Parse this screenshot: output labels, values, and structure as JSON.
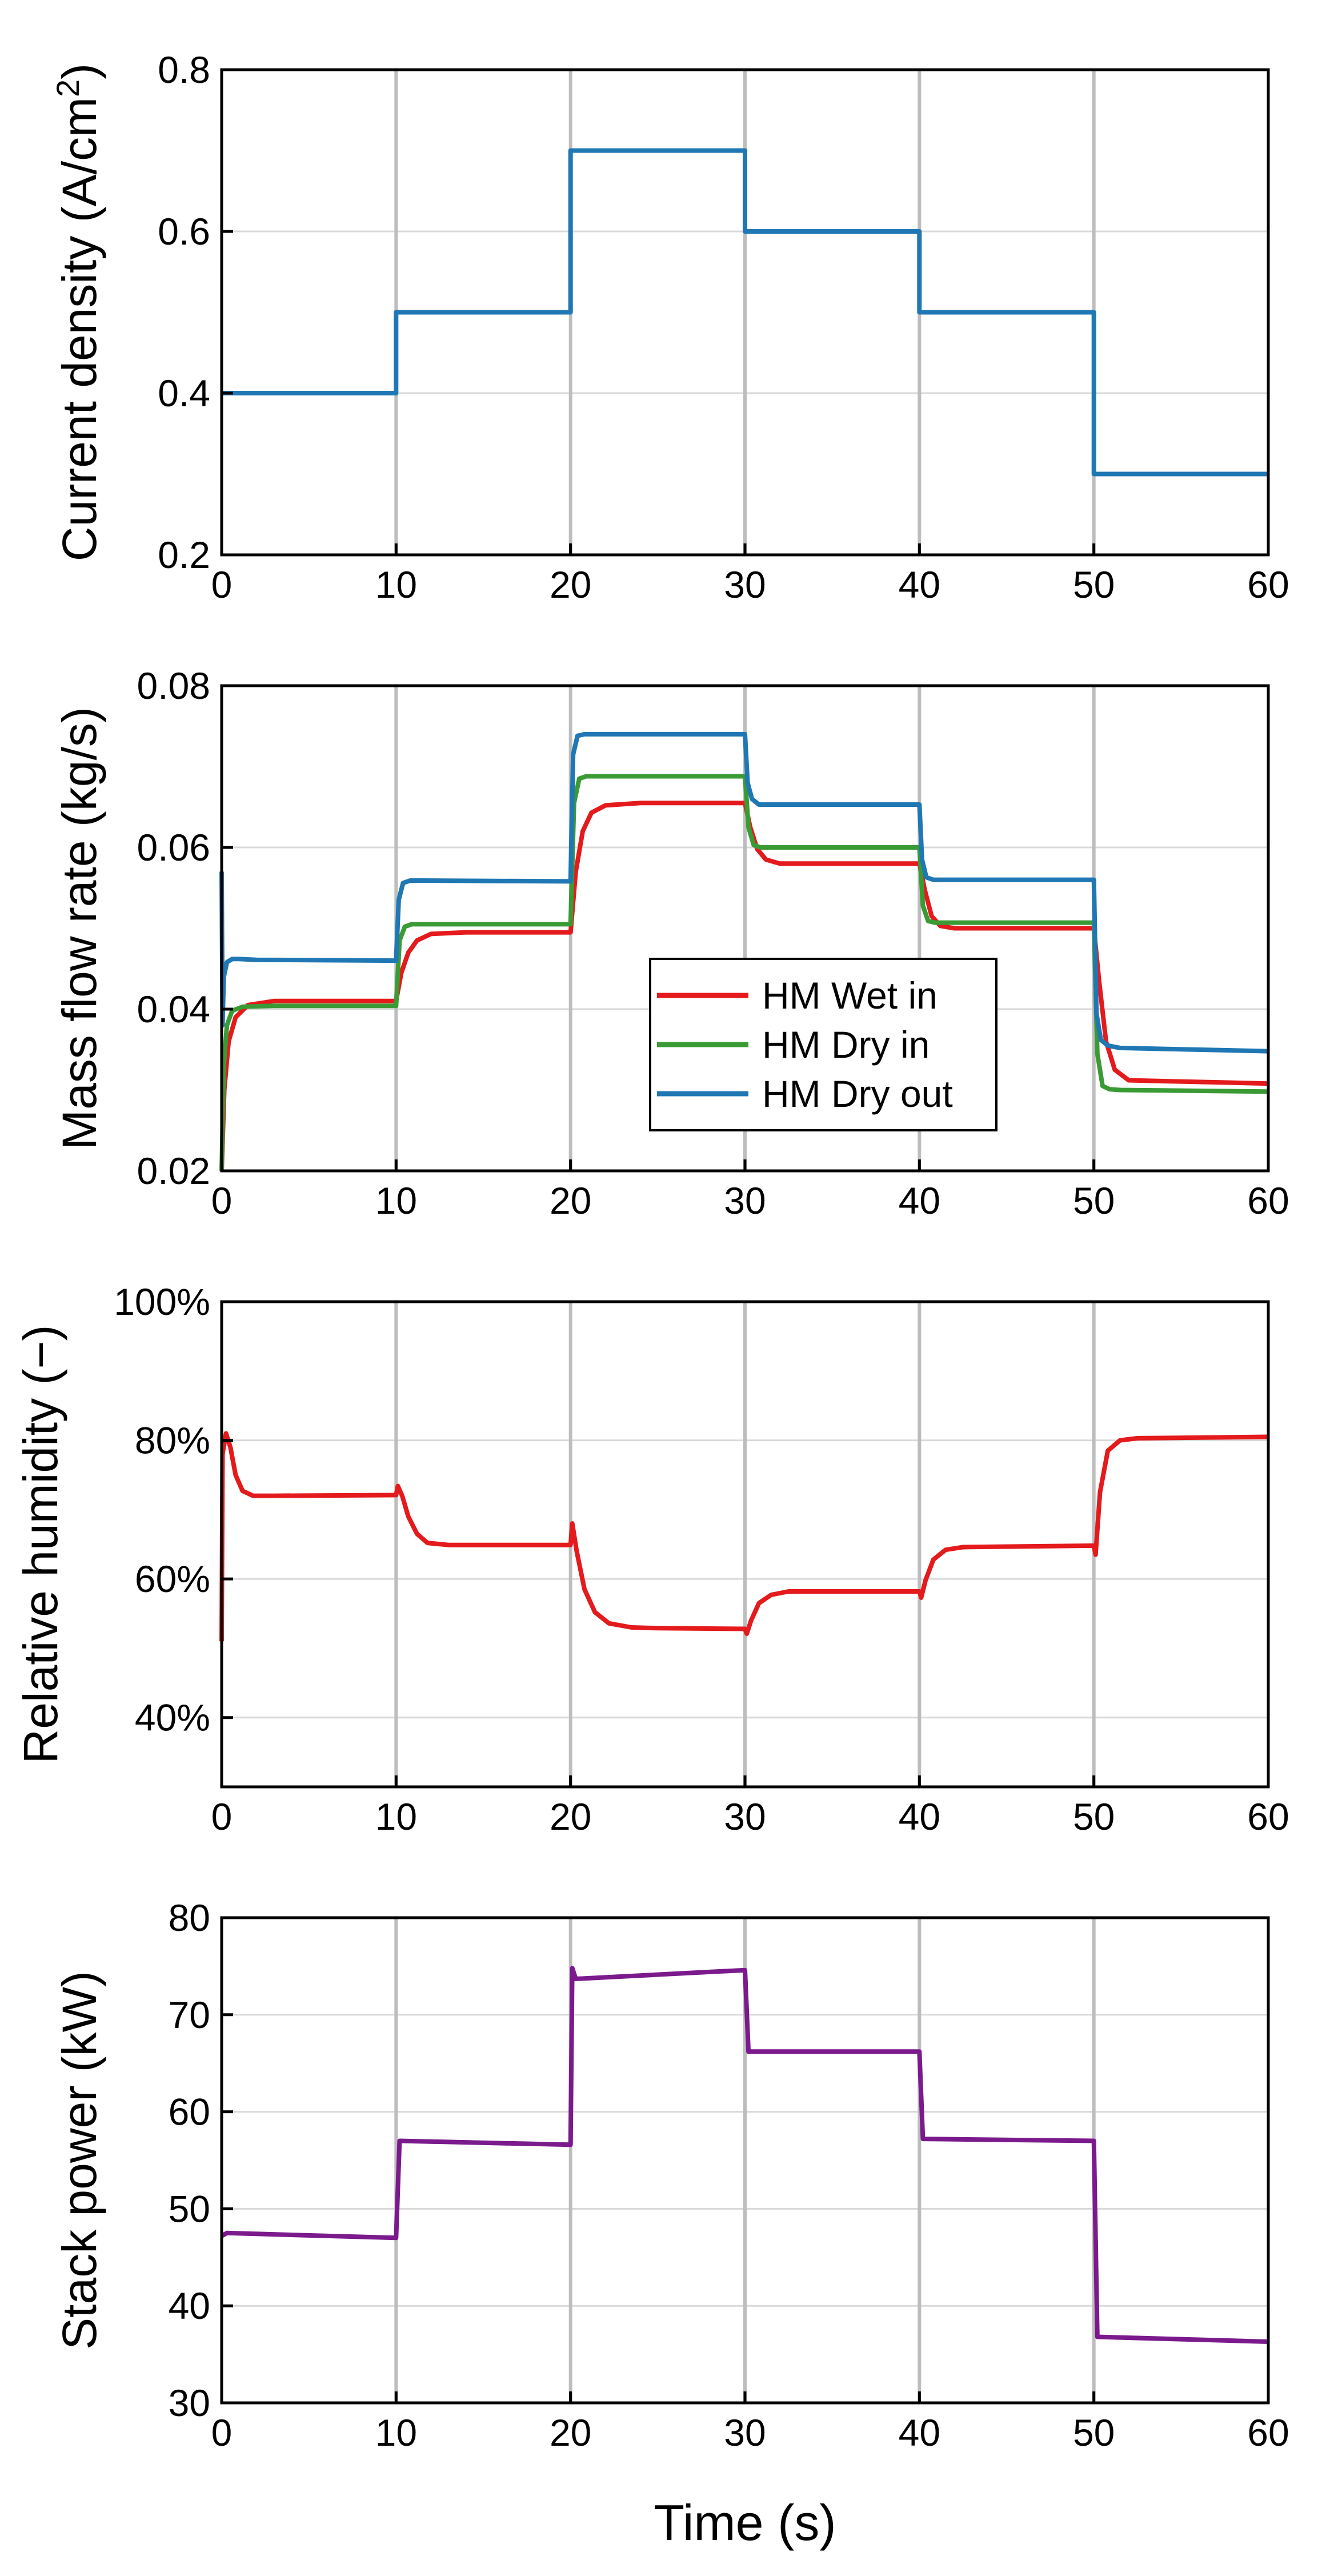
{
  "colors": {
    "wet_in": "#e41a1c",
    "dry_in": "#3a9b35",
    "dry_out": "#1f77b4",
    "current": "#1f77b4",
    "rh": "#e41a1c",
    "power": "#7b1a8c",
    "grid_vertical": "#bdbdbd",
    "grid_horizontal": "#d9d9d9"
  },
  "xlabel": "Time (s)",
  "chart_data": [
    {
      "type": "line",
      "ylabel": "Current density (A/cm²)",
      "ylabel_base": "Current density (A/cm",
      "ylabel_sup": "2",
      "ylabel_tail": ")",
      "xlim": [
        0,
        60
      ],
      "ylim": [
        0.2,
        0.8
      ],
      "xticks": [
        0,
        10,
        20,
        30,
        40,
        50,
        60
      ],
      "xtick_labels": [
        "0",
        "10",
        "20",
        "30",
        "40",
        "50",
        "60"
      ],
      "yticks": [
        0.2,
        0.4,
        0.6,
        0.8
      ],
      "ytick_labels": [
        "0.2",
        "0.4",
        "0.6",
        "0.8"
      ],
      "series": [
        {
          "name": "Current density",
          "color_key": "current",
          "x": [
            0,
            10,
            10,
            20,
            20,
            30,
            30,
            40,
            40,
            50,
            50,
            60
          ],
          "y": [
            0.4,
            0.4,
            0.5,
            0.5,
            0.7,
            0.7,
            0.6,
            0.6,
            0.5,
            0.5,
            0.3,
            0.3
          ]
        }
      ]
    },
    {
      "type": "line",
      "ylabel": "Mass flow rate (kg/s)",
      "xlim": [
        0,
        60
      ],
      "ylim": [
        0.02,
        0.08
      ],
      "xticks": [
        0,
        10,
        20,
        30,
        40,
        50,
        60
      ],
      "xtick_labels": [
        "0",
        "10",
        "20",
        "30",
        "40",
        "50",
        "60"
      ],
      "yticks": [
        0.02,
        0.04,
        0.06,
        0.08
      ],
      "ytick_labels": [
        "0.02",
        "0.04",
        "0.06",
        "0.08"
      ],
      "legend_position": "center",
      "series": [
        {
          "name": "HM Wet in",
          "color_key": "wet_in",
          "x": [
            0,
            0.15,
            0.4,
            0.8,
            1.5,
            3,
            10,
            10.3,
            10.7,
            11.2,
            12,
            14,
            20,
            20.3,
            20.7,
            21.2,
            22,
            24,
            30,
            30.3,
            30.7,
            31.2,
            32,
            40,
            40.3,
            40.7,
            41.2,
            42,
            50,
            50.3,
            50.7,
            51.2,
            52,
            60
          ],
          "y": [
            0.02,
            0.03,
            0.036,
            0.039,
            0.0405,
            0.041,
            0.041,
            0.0445,
            0.047,
            0.0485,
            0.0493,
            0.0495,
            0.0495,
            0.057,
            0.062,
            0.0643,
            0.0652,
            0.0655,
            0.0655,
            0.0625,
            0.0598,
            0.0585,
            0.058,
            0.058,
            0.0548,
            0.0515,
            0.0503,
            0.05,
            0.05,
            0.0435,
            0.036,
            0.0325,
            0.0312,
            0.0308
          ]
        },
        {
          "name": "HM Dry in",
          "color_key": "dry_in",
          "x": [
            0,
            0.12,
            0.3,
            0.6,
            1.2,
            3,
            10,
            10.2,
            10.5,
            10.9,
            11.5,
            20,
            20.2,
            20.5,
            20.9,
            21.5,
            30,
            30.2,
            30.5,
            30.9,
            31.5,
            40,
            40.2,
            40.5,
            40.9,
            41.5,
            50,
            50.2,
            50.5,
            50.9,
            51.5,
            60
          ],
          "y": [
            0.02,
            0.033,
            0.038,
            0.0398,
            0.0403,
            0.0404,
            0.0404,
            0.0485,
            0.0502,
            0.0505,
            0.0505,
            0.0505,
            0.0655,
            0.0685,
            0.0688,
            0.0688,
            0.0688,
            0.0625,
            0.0603,
            0.06,
            0.06,
            0.06,
            0.0528,
            0.0509,
            0.0507,
            0.0507,
            0.0507,
            0.0345,
            0.0305,
            0.0301,
            0.03,
            0.0298
          ]
        },
        {
          "name": "HM Dry out",
          "color_key": "dry_out",
          "x": [
            0,
            0.05,
            0.12,
            0.3,
            0.6,
            1,
            2,
            10,
            10.15,
            10.4,
            10.8,
            11.5,
            20,
            20.15,
            20.4,
            20.8,
            21.5,
            30,
            30.15,
            30.4,
            30.8,
            31.5,
            40,
            40.15,
            40.4,
            40.8,
            41.5,
            50,
            50.15,
            50.4,
            50.8,
            51.5,
            60
          ],
          "y": [
            0.057,
            0.038,
            0.044,
            0.0458,
            0.0462,
            0.0462,
            0.0461,
            0.046,
            0.0535,
            0.0556,
            0.0559,
            0.0559,
            0.0558,
            0.0715,
            0.0738,
            0.074,
            0.074,
            0.074,
            0.068,
            0.066,
            0.0653,
            0.0653,
            0.0653,
            0.0585,
            0.0563,
            0.056,
            0.056,
            0.056,
            0.0395,
            0.0362,
            0.0355,
            0.0352,
            0.0348
          ]
        }
      ]
    },
    {
      "type": "line",
      "ylabel": "Relative humidity (−)",
      "xlim": [
        0,
        60
      ],
      "ylim": [
        0.3,
        1.0
      ],
      "xticks": [
        0,
        10,
        20,
        30,
        40,
        50,
        60
      ],
      "xtick_labels": [
        "0",
        "10",
        "20",
        "30",
        "40",
        "50",
        "60"
      ],
      "yticks": [
        0.4,
        0.6,
        0.8,
        1.0
      ],
      "ytick_labels": [
        "40%",
        "60%",
        "80%",
        "100%"
      ],
      "series": [
        {
          "name": "Relative humidity",
          "color_key": "rh",
          "x": [
            0,
            0.05,
            0.25,
            0.5,
            0.8,
            1.2,
            1.8,
            3,
            10,
            10.1,
            10.35,
            10.7,
            11.2,
            11.8,
            13,
            20,
            20.1,
            20.35,
            20.8,
            21.4,
            22.2,
            23.5,
            25,
            30,
            30.1,
            30.35,
            30.8,
            31.5,
            32.5,
            40,
            40.1,
            40.35,
            40.8,
            41.5,
            42.5,
            50,
            50.1,
            50.35,
            50.8,
            51.5,
            52.5,
            60
          ],
          "y": [
            0.51,
            0.78,
            0.81,
            0.79,
            0.75,
            0.727,
            0.72,
            0.72,
            0.721,
            0.734,
            0.72,
            0.69,
            0.665,
            0.652,
            0.649,
            0.649,
            0.68,
            0.64,
            0.585,
            0.552,
            0.536,
            0.53,
            0.529,
            0.528,
            0.521,
            0.54,
            0.565,
            0.577,
            0.582,
            0.582,
            0.573,
            0.598,
            0.628,
            0.642,
            0.646,
            0.648,
            0.635,
            0.725,
            0.785,
            0.8,
            0.803,
            0.805
          ]
        }
      ]
    },
    {
      "type": "line",
      "ylabel": "Stack power (kW)",
      "xlim": [
        0,
        60
      ],
      "ylim": [
        30,
        80
      ],
      "xticks": [
        0,
        10,
        20,
        30,
        40,
        50,
        60
      ],
      "xtick_labels": [
        "0",
        "10",
        "20",
        "30",
        "40",
        "50",
        "60"
      ],
      "yticks": [
        30,
        40,
        50,
        60,
        70,
        80
      ],
      "ytick_labels": [
        "30",
        "40",
        "50",
        "60",
        "70",
        "80"
      ],
      "series": [
        {
          "name": "Stack power",
          "color_key": "power",
          "x": [
            0,
            0.3,
            10,
            10,
            10.2,
            20,
            20,
            20.1,
            20.3,
            30,
            30,
            30.2,
            40,
            40,
            40.2,
            50,
            50,
            50.2,
            60
          ],
          "y": [
            47.2,
            47.5,
            47.0,
            47.0,
            57.0,
            56.6,
            56.6,
            74.8,
            73.7,
            74.6,
            74.6,
            66.2,
            66.2,
            66.2,
            57.2,
            57.0,
            57.0,
            36.8,
            36.3
          ]
        }
      ]
    }
  ]
}
